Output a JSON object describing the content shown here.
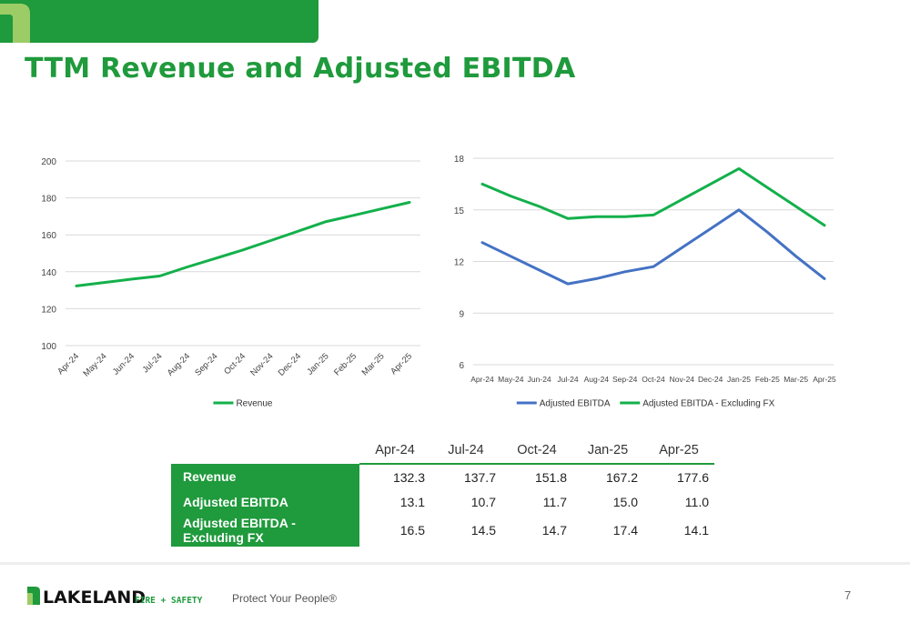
{
  "slide": {
    "title": "TTM Revenue and Adjusted EBITDA",
    "page_number": "7",
    "tagline": "Protect Your People®",
    "brand": {
      "name": "LAKELAND",
      "sub": "FIRE + SAFETY"
    },
    "colors": {
      "brand_green": "#1f9a3c",
      "line_green": "#13b04b",
      "line_blue": "#4472c4"
    }
  },
  "chart_data": [
    {
      "type": "line",
      "categories": [
        "Apr-24",
        "May-24",
        "Jun-24",
        "Jul-24",
        "Aug-24",
        "Sep-24",
        "Oct-24",
        "Nov-24",
        "Dec-24",
        "Jan-25",
        "Feb-25",
        "Mar-25",
        "Apr-25"
      ],
      "series": [
        {
          "name": "Revenue",
          "color": "#13b04b",
          "values": [
            132.3,
            134.2,
            136.0,
            137.7,
            142.6,
            147.2,
            151.8,
            156.9,
            162.0,
            167.2,
            170.6,
            174.1,
            177.6
          ]
        }
      ],
      "ylim": [
        100,
        200
      ],
      "yticks": [
        100,
        120,
        140,
        160,
        180,
        200
      ],
      "grid": true,
      "legend": "bottom",
      "xlabel_rotation": "diagonal"
    },
    {
      "type": "line",
      "categories": [
        "Apr-24",
        "May-24",
        "Jun-24",
        "Jul-24",
        "Aug-24",
        "Sep-24",
        "Oct-24",
        "Nov-24",
        "Dec-24",
        "Jan-25",
        "Feb-25",
        "Mar-25",
        "Apr-25"
      ],
      "series": [
        {
          "name": "Adjusted EBITDA",
          "color": "#4472c4",
          "values": [
            13.1,
            12.3,
            11.5,
            10.7,
            11.0,
            11.4,
            11.7,
            12.8,
            13.9,
            15.0,
            13.7,
            12.3,
            11.0
          ]
        },
        {
          "name": "Adjusted EBITDA - Excluding FX",
          "color": "#13b04b",
          "values": [
            16.5,
            15.8,
            15.2,
            14.5,
            14.6,
            14.6,
            14.7,
            15.6,
            16.5,
            17.4,
            16.3,
            15.2,
            14.1
          ]
        }
      ],
      "ylim": [
        6,
        18
      ],
      "yticks": [
        6,
        9,
        12,
        15,
        18
      ],
      "grid": true,
      "legend": "bottom"
    }
  ],
  "table": {
    "columns": [
      "Apr-24",
      "Jul-24",
      "Oct-24",
      "Jan-25",
      "Apr-25"
    ],
    "rows": [
      {
        "label": "Revenue",
        "values": [
          "132.3",
          "137.7",
          "151.8",
          "167.2",
          "177.6"
        ]
      },
      {
        "label": "Adjusted EBITDA",
        "values": [
          "13.1",
          "10.7",
          "11.7",
          "15.0",
          "11.0"
        ]
      },
      {
        "label": "Adjusted EBITDA - Excluding FX",
        "values": [
          "16.5",
          "14.5",
          "14.7",
          "17.4",
          "14.1"
        ]
      }
    ]
  }
}
